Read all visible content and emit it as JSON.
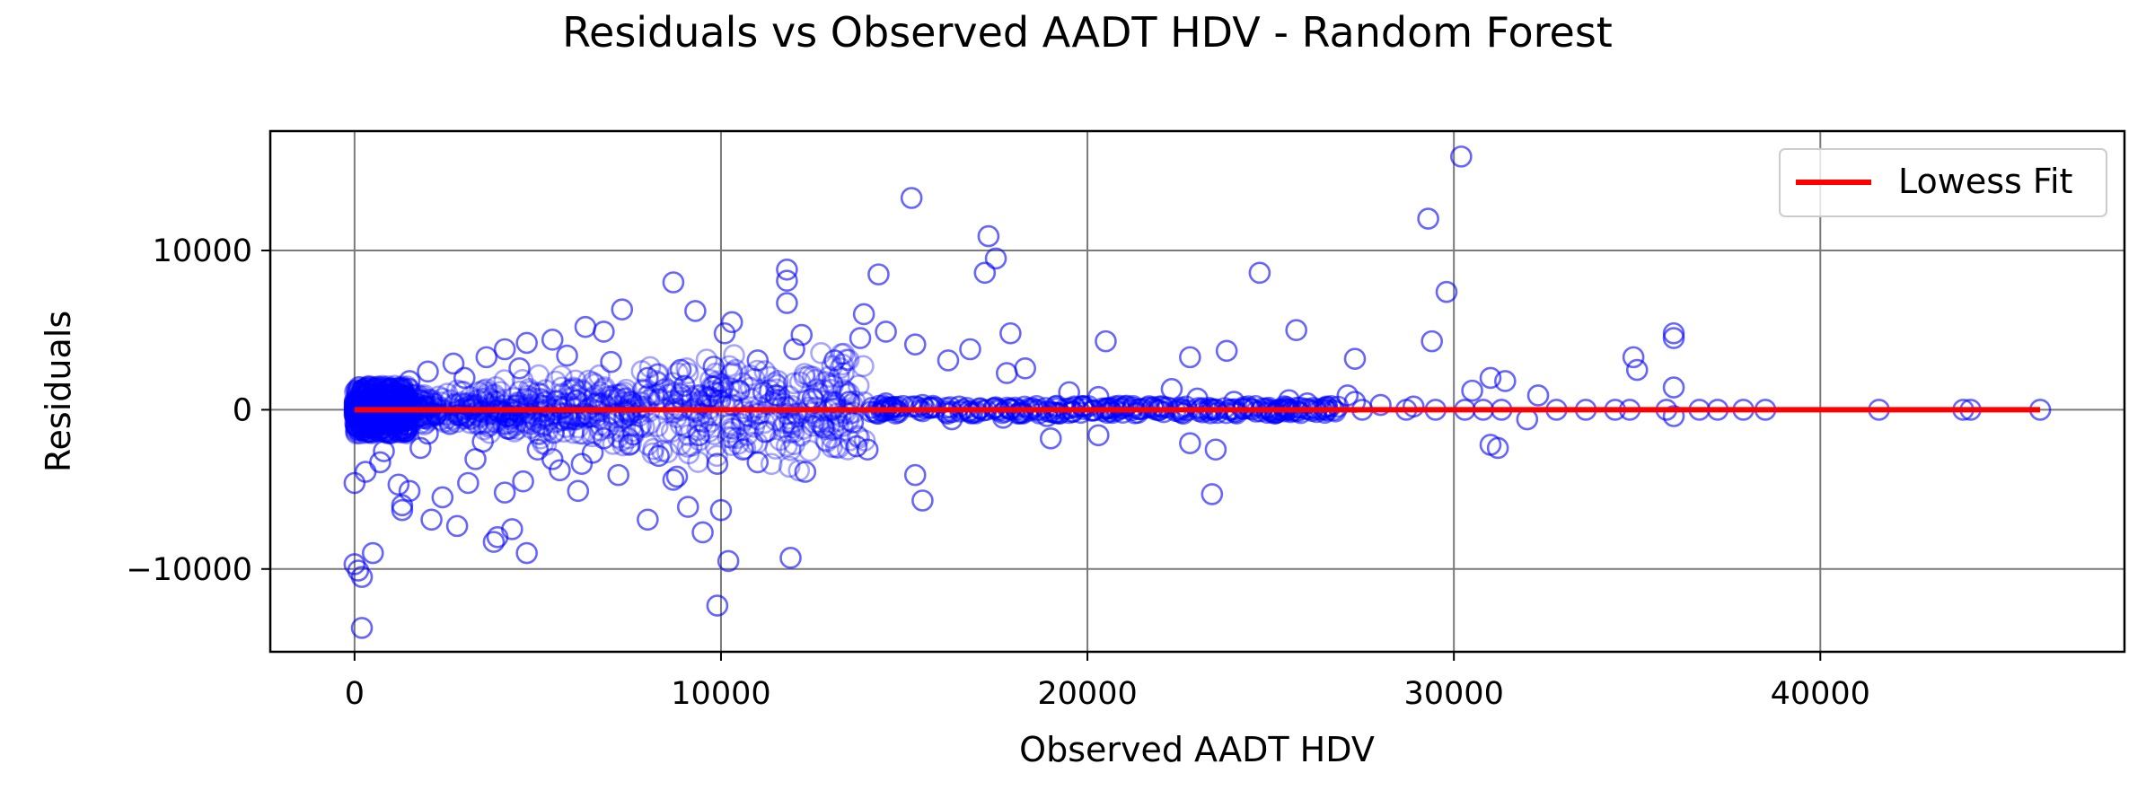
{
  "chart_data": {
    "type": "scatter",
    "title": "Residuals vs Observed AADT HDV - Random Forest",
    "xlabel": "Observed AADT HDV",
    "ylabel": "Residuals",
    "xlim": [
      -2300,
      48300
    ],
    "ylim": [
      -15200,
      17500
    ],
    "xticks": [
      0,
      10000,
      20000,
      30000,
      40000
    ],
    "yticks": [
      -10000,
      0,
      10000
    ],
    "xtick_labels": [
      "0",
      "10000",
      "20000",
      "30000",
      "40000"
    ],
    "ytick_labels": [
      "−10000",
      "0",
      "10000"
    ],
    "grid": true,
    "legend": {
      "position": "top-right",
      "entries": [
        "Lowess Fit"
      ]
    },
    "colors": {
      "points": "#0000ff",
      "lowess": "#ff0000"
    },
    "series": [
      {
        "kind": "scatter",
        "marker": "open-circle",
        "points": [
          [
            15200,
            13300
          ],
          [
            30200,
            15900
          ],
          [
            29300,
            12000
          ],
          [
            17300,
            10900
          ],
          [
            17500,
            9500
          ],
          [
            17200,
            8600
          ],
          [
            24700,
            8600
          ],
          [
            11800,
            8800
          ],
          [
            11800,
            8100
          ],
          [
            8700,
            8000
          ],
          [
            29800,
            7400
          ],
          [
            11800,
            6700
          ],
          [
            14300,
            8500
          ],
          [
            9300,
            6200
          ],
          [
            7300,
            6300
          ],
          [
            13900,
            6000
          ],
          [
            10300,
            5500
          ],
          [
            10100,
            4800
          ],
          [
            14500,
            4900
          ],
          [
            12200,
            4700
          ],
          [
            13800,
            4500
          ],
          [
            15300,
            4100
          ],
          [
            20500,
            4300
          ],
          [
            29400,
            4300
          ],
          [
            36000,
            4800
          ],
          [
            36000,
            4500
          ],
          [
            25700,
            5000
          ],
          [
            23800,
            3700
          ],
          [
            22800,
            3300
          ],
          [
            34900,
            3300
          ],
          [
            27300,
            3200
          ],
          [
            31000,
            2000
          ],
          [
            31400,
            1800
          ],
          [
            36000,
            1400
          ],
          [
            32300,
            900
          ],
          [
            30500,
            1200
          ],
          [
            35000,
            2500
          ],
          [
            17900,
            4800
          ],
          [
            16800,
            3800
          ],
          [
            16200,
            3100
          ],
          [
            18300,
            2600
          ],
          [
            17800,
            2300
          ],
          [
            19500,
            1100
          ],
          [
            20300,
            800
          ],
          [
            22300,
            1300
          ],
          [
            23000,
            700
          ],
          [
            24000,
            500
          ],
          [
            25500,
            600
          ],
          [
            26000,
            400
          ],
          [
            27100,
            900
          ],
          [
            27300,
            500
          ],
          [
            28000,
            300
          ],
          [
            28900,
            200
          ],
          [
            31000,
            -2200
          ],
          [
            31200,
            -2400
          ],
          [
            23500,
            -2500
          ],
          [
            22800,
            -2100
          ],
          [
            23400,
            -5300
          ],
          [
            32000,
            -600
          ],
          [
            36000,
            -400
          ],
          [
            20300,
            -1600
          ],
          [
            19000,
            -1800
          ],
          [
            14000,
            -2500
          ],
          [
            13700,
            -2300
          ],
          [
            15300,
            -4100
          ],
          [
            15500,
            -5700
          ],
          [
            12300,
            -3900
          ],
          [
            11000,
            -3300
          ],
          [
            10600,
            -2500
          ],
          [
            9900,
            -3400
          ],
          [
            8700,
            -4400
          ],
          [
            8800,
            -4200
          ],
          [
            9100,
            -6100
          ],
          [
            8000,
            -6900
          ],
          [
            9500,
            -7700
          ],
          [
            10200,
            -9500
          ],
          [
            11900,
            -9300
          ],
          [
            9900,
            -12300
          ],
          [
            10000,
            -6300
          ],
          [
            4700,
            -9000
          ],
          [
            3800,
            -8300
          ],
          [
            3900,
            -8000
          ],
          [
            4300,
            -7500
          ],
          [
            2800,
            -7300
          ],
          [
            2100,
            -6900
          ],
          [
            1300,
            -6300
          ],
          [
            1300,
            -6000
          ],
          [
            1200,
            -4700
          ],
          [
            1500,
            -5100
          ],
          [
            2400,
            -5500
          ],
          [
            3100,
            -4600
          ],
          [
            4100,
            -5200
          ],
          [
            4600,
            -4500
          ],
          [
            6100,
            -5100
          ],
          [
            6200,
            -3400
          ],
          [
            7200,
            -4100
          ],
          [
            5400,
            -3100
          ],
          [
            6500,
            -2700
          ],
          [
            500,
            -9000
          ],
          [
            0,
            -9700
          ],
          [
            100,
            -10100
          ],
          [
            200,
            -10500
          ],
          [
            200,
            -13700
          ],
          [
            0,
            -4600
          ],
          [
            300,
            -3900
          ],
          [
            700,
            -3300
          ],
          [
            800,
            -2600
          ],
          [
            12000,
            3800
          ],
          [
            11000,
            3100
          ],
          [
            9800,
            2700
          ],
          [
            8900,
            2500
          ],
          [
            13100,
            3100
          ],
          [
            6800,
            4900
          ],
          [
            6300,
            5200
          ],
          [
            5400,
            4400
          ],
          [
            4700,
            4200
          ],
          [
            4100,
            3800
          ],
          [
            5800,
            3400
          ],
          [
            3600,
            3300
          ],
          [
            2700,
            2900
          ],
          [
            2000,
            2400
          ],
          [
            1500,
            1800
          ],
          [
            1000,
            1300
          ],
          [
            600,
            800
          ],
          [
            300,
            400
          ],
          [
            3000,
            2000
          ],
          [
            4500,
            2600
          ],
          [
            7000,
            3000
          ],
          [
            8000,
            2000
          ],
          [
            9000,
            1500
          ],
          [
            10500,
            1200
          ],
          [
            11500,
            900
          ],
          [
            12500,
            700
          ],
          [
            13500,
            500
          ],
          [
            14500,
            400
          ],
          [
            15500,
            300
          ],
          [
            16500,
            200
          ],
          [
            17500,
            150
          ],
          [
            18500,
            100
          ],
          [
            19500,
            80
          ],
          [
            20500,
            60
          ],
          [
            21500,
            50
          ],
          [
            22500,
            40
          ],
          [
            23500,
            30
          ],
          [
            24500,
            20
          ],
          [
            25500,
            10
          ],
          [
            26500,
            0
          ],
          [
            27500,
            0
          ],
          [
            28700,
            0
          ],
          [
            29500,
            0
          ],
          [
            30300,
            0
          ],
          [
            30800,
            0
          ],
          [
            31300,
            0
          ],
          [
            32800,
            0
          ],
          [
            33600,
            0
          ],
          [
            34400,
            0
          ],
          [
            34800,
            0
          ],
          [
            35800,
            0
          ],
          [
            36700,
            0
          ],
          [
            37200,
            0
          ],
          [
            37900,
            0
          ],
          [
            38500,
            0
          ],
          [
            41600,
            0
          ],
          [
            43900,
            0
          ],
          [
            44100,
            0
          ],
          [
            46000,
            0
          ],
          [
            2000,
            -1500
          ],
          [
            3500,
            -2000
          ],
          [
            5000,
            -2500
          ],
          [
            7500,
            -2200
          ],
          [
            6800,
            -1800
          ],
          [
            4200,
            -1200
          ],
          [
            2600,
            -900
          ],
          [
            1100,
            -700
          ],
          [
            1800,
            -2400
          ],
          [
            3300,
            -3100
          ],
          [
            5600,
            -3800
          ],
          [
            8300,
            -2900
          ],
          [
            9400,
            -1600
          ],
          [
            11200,
            -1400
          ],
          [
            12800,
            -1100
          ],
          [
            13600,
            -800
          ],
          [
            16300,
            -600
          ],
          [
            17700,
            -500
          ],
          [
            18900,
            -400
          ]
        ]
      },
      {
        "kind": "line",
        "name": "Lowess Fit",
        "points": [
          [
            0,
            0
          ],
          [
            46000,
            0
          ]
        ]
      }
    ]
  }
}
